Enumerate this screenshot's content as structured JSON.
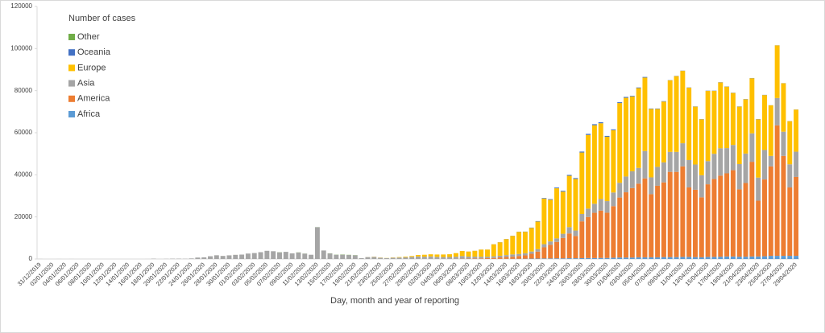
{
  "chart_data": {
    "type": "stacked_bar",
    "legend_title": "Number of cases",
    "x_label": "Day, month and year of reporting",
    "categories": [
      "31/12/2019",
      null,
      "02/01/2020",
      null,
      "04/01/2020",
      null,
      "06/01/2020",
      null,
      "08/01/2020",
      null,
      "10/01/2020",
      null,
      "12/01/2020",
      null,
      "14/01/2020",
      null,
      "16/01/2020",
      null,
      "18/01/2020",
      null,
      "20/01/2020",
      null,
      "22/01/2020",
      null,
      "24/01/2020",
      null,
      "26/01/2020",
      null,
      "28/01/2020",
      null,
      "30/01/2020",
      null,
      "01/02/2020",
      null,
      "03/02/2020",
      null,
      "05/02/2020",
      null,
      "07/02/2020",
      null,
      "09/02/2020",
      null,
      "11/02/2020",
      null,
      "13/02/2020",
      null,
      "15/02/2020",
      null,
      "17/02/2020",
      null,
      "19/02/2020",
      null,
      "21/02/2020",
      null,
      "23/02/2020",
      null,
      "25/02/2020",
      null,
      "27/02/2020",
      null,
      "29/02/2020",
      null,
      "02/03/2020",
      null,
      "04/03/2020",
      null,
      "06/03/2020",
      null,
      "08/03/2020",
      null,
      "10/03/2020",
      null,
      "12/03/2020",
      null,
      "14/03/2020",
      null,
      "16/03/2020",
      null,
      "18/03/2020",
      null,
      "20/03/2020",
      null,
      "22/03/2020",
      null,
      "24/03/2020",
      null,
      "26/03/2020",
      null,
      "28/03/2020",
      null,
      "30/03/2020",
      null,
      "01/04/2020",
      null,
      "03/04/2020",
      null,
      "05/04/2020",
      null,
      "07/04/2020",
      null,
      "09/04/2020",
      null,
      "11/04/2020",
      null,
      "13/04/2020",
      null,
      "15/04/2020",
      null,
      "17/04/2020",
      null,
      "19/04/2020",
      null,
      "21/04/2020",
      null,
      "23/04/2020",
      null,
      "25/04/2020",
      null,
      "27/04/2020",
      null,
      "29/04/2020"
    ],
    "series": [
      {
        "name": "Africa",
        "color": "#5b9bd5",
        "values": [
          0,
          0,
          0,
          0,
          0,
          0,
          0,
          0,
          0,
          0,
          0,
          0,
          0,
          0,
          0,
          0,
          0,
          0,
          0,
          0,
          0,
          0,
          0,
          0,
          0,
          0,
          0,
          0,
          0,
          0,
          0,
          0,
          0,
          0,
          0,
          0,
          0,
          0,
          0,
          0,
          0,
          0,
          0,
          0,
          0,
          0,
          0,
          0,
          0,
          0,
          0,
          0,
          0,
          0,
          0,
          0,
          0,
          0,
          0,
          0,
          0,
          1,
          1,
          2,
          3,
          5,
          8,
          10,
          10,
          15,
          20,
          30,
          40,
          50,
          70,
          80,
          100,
          130,
          170,
          200,
          250,
          250,
          300,
          300,
          350,
          350,
          400,
          450,
          450,
          500,
          500,
          600,
          700,
          700,
          700,
          800,
          800,
          800,
          800,
          900,
          900,
          900,
          1000,
          1000,
          900,
          800,
          1000,
          1000,
          1100,
          1200,
          1200,
          1100,
          1100,
          1200,
          1200,
          1300,
          1500,
          1500,
          1500,
          1500,
          1500
        ]
      },
      {
        "name": "America",
        "color": "#ed7d31",
        "values": [
          0,
          0,
          0,
          0,
          0,
          0,
          0,
          0,
          0,
          0,
          0,
          0,
          0,
          0,
          0,
          0,
          0,
          0,
          0,
          0,
          0,
          1,
          0,
          0,
          0,
          0,
          3,
          1,
          0,
          0,
          0,
          1,
          0,
          0,
          0,
          0,
          0,
          0,
          0,
          0,
          0,
          0,
          0,
          0,
          0,
          0,
          0,
          0,
          0,
          0,
          0,
          0,
          0,
          0,
          0,
          0,
          0,
          0,
          0,
          10,
          20,
          20,
          30,
          30,
          40,
          50,
          80,
          110,
          150,
          200,
          250,
          350,
          450,
          700,
          900,
          1000,
          1300,
          1600,
          2300,
          3300,
          5300,
          6500,
          7800,
          9700,
          11800,
          10600,
          17500,
          19500,
          21500,
          22500,
          21500,
          24500,
          28500,
          31000,
          33000,
          35000,
          37500,
          30000,
          34000,
          35500,
          40500,
          40500,
          43000,
          33000,
          32000,
          28500,
          34500,
          37000,
          38500,
          39500,
          41000,
          32000,
          35000,
          45000,
          26500,
          36500,
          42500,
          62000,
          47500,
          32500,
          37500
        ]
      },
      {
        "name": "Asia",
        "color": "#a5a5a5",
        "values": [
          27,
          0,
          0,
          17,
          0,
          15,
          0,
          0,
          0,
          0,
          0,
          1,
          0,
          1,
          1,
          0,
          4,
          17,
          136,
          19,
          78,
          140,
          142,
          98,
          260,
          680,
          780,
          1310,
          1770,
          1460,
          1740,
          1980,
          2100,
          2590,
          2830,
          3240,
          3900,
          3700,
          3160,
          3400,
          2660,
          3070,
          2540,
          2020,
          15100,
          4050,
          2640,
          2010,
          2050,
          1890,
          1750,
          400,
          900,
          1000,
          600,
          400,
          600,
          700,
          800,
          1000,
          1200,
          1100,
          1200,
          1000,
          900,
          900,
          1000,
          1300,
          1000,
          900,
          800,
          700,
          800,
          800,
          900,
          1100,
          1000,
          1000,
          1100,
          1200,
          1500,
          1600,
          1700,
          2000,
          3000,
          2600,
          3500,
          4000,
          4300,
          5500,
          5500,
          6500,
          7000,
          7500,
          8000,
          7500,
          13000,
          8000,
          9000,
          9500,
          9500,
          9500,
          11000,
          13000,
          12000,
          10500,
          11000,
          12000,
          13000,
          12000,
          12000,
          12000,
          14000,
          13500,
          11000,
          14000,
          5000,
          13000,
          11500,
          11000,
          12000
        ]
      },
      {
        "name": "Europe",
        "color": "#ffc000",
        "values": [
          0,
          0,
          0,
          0,
          0,
          0,
          0,
          0,
          0,
          0,
          0,
          0,
          0,
          0,
          0,
          0,
          0,
          0,
          0,
          0,
          0,
          0,
          0,
          0,
          0,
          3,
          0,
          0,
          4,
          5,
          4,
          8,
          0,
          0,
          0,
          0,
          0,
          0,
          0,
          0,
          0,
          0,
          0,
          0,
          0,
          0,
          0,
          0,
          0,
          0,
          0,
          0,
          20,
          80,
          80,
          70,
          120,
          200,
          300,
          400,
          700,
          900,
          1000,
          1100,
          1200,
          1300,
          1700,
          2400,
          2400,
          2800,
          3400,
          3400,
          5700,
          6400,
          7600,
          8800,
          10500,
          10200,
          11200,
          13100,
          21700,
          19800,
          23800,
          20000,
          24400,
          24500,
          29200,
          35000,
          37300,
          36000,
          30600,
          29600,
          37900,
          37400,
          35500,
          37900,
          34900,
          32500,
          27500,
          28900,
          34000,
          36000,
          34400,
          34400,
          27500,
          26600,
          33400,
          29900,
          31300,
          29200,
          24700,
          27300,
          25800,
          26200,
          27700,
          26100,
          24000,
          25000,
          23000,
          20500,
          20000
        ]
      },
      {
        "name": "Oceania",
        "color": "#4472c4",
        "values": [
          0,
          0,
          0,
          0,
          0,
          0,
          0,
          0,
          0,
          0,
          0,
          0,
          0,
          0,
          0,
          0,
          0,
          0,
          0,
          0,
          0,
          0,
          0,
          0,
          0,
          4,
          0,
          0,
          0,
          0,
          0,
          0,
          0,
          0,
          0,
          0,
          0,
          0,
          0,
          0,
          0,
          0,
          0,
          0,
          0,
          0,
          0,
          0,
          0,
          0,
          0,
          0,
          0,
          0,
          0,
          0,
          0,
          0,
          0,
          0,
          0,
          2,
          2,
          3,
          3,
          5,
          10,
          10,
          10,
          15,
          20,
          20,
          30,
          50,
          60,
          70,
          80,
          100,
          150,
          200,
          250,
          300,
          350,
          400,
          400,
          400,
          450,
          500,
          500,
          500,
          400,
          400,
          400,
          400,
          300,
          300,
          300,
          200,
          200,
          200,
          100,
          100,
          100,
          100,
          100,
          100,
          100,
          100,
          100,
          100,
          100,
          100,
          100,
          100,
          100,
          100,
          50,
          50,
          50,
          50,
          50
        ]
      },
      {
        "name": "Other",
        "color": "#70ad47",
        "values": [
          0,
          0,
          0,
          0,
          0,
          0,
          0,
          0,
          0,
          0,
          0,
          0,
          0,
          0,
          0,
          0,
          0,
          0,
          0,
          0,
          0,
          0,
          0,
          0,
          0,
          0,
          0,
          0,
          0,
          0,
          0,
          0,
          0,
          0,
          0,
          0,
          0,
          0,
          61,
          0,
          6,
          65,
          39,
          0,
          44,
          0,
          67,
          70,
          99,
          88,
          79,
          13,
          0,
          0,
          0,
          0,
          0,
          0,
          0,
          0,
          0,
          0,
          0,
          0,
          0,
          0,
          0,
          0,
          0,
          0,
          0,
          0,
          0,
          0,
          0,
          0,
          0,
          0,
          0,
          0,
          0,
          0,
          0,
          0,
          0,
          0,
          0,
          0,
          0,
          0,
          0,
          0,
          0,
          0,
          0,
          0,
          0,
          0,
          0,
          0,
          0,
          0,
          0,
          0,
          0,
          0,
          0,
          0,
          0,
          0,
          0,
          0,
          0,
          0,
          0,
          0,
          0,
          0,
          0,
          0,
          0
        ]
      }
    ],
    "ylim": [
      0,
      120000
    ],
    "yticks": [
      0,
      20000,
      40000,
      60000,
      80000,
      100000,
      120000
    ]
  }
}
